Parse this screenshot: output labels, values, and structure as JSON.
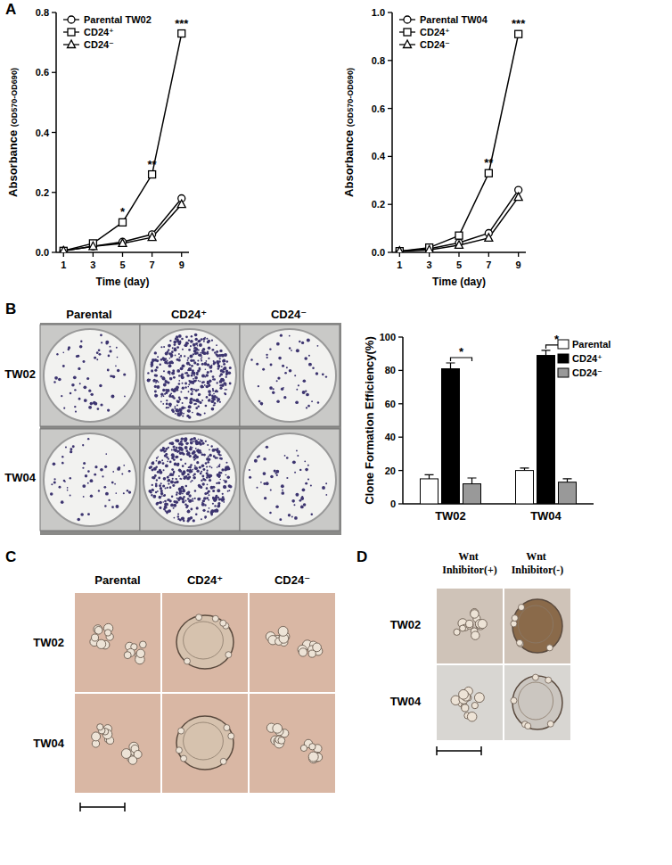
{
  "figure": {
    "panels": [
      "A",
      "B",
      "C",
      "D"
    ],
    "colony_columns": [
      "Parental",
      "CD24⁺",
      "CD24⁻"
    ],
    "colony_rows": [
      "TW02",
      "TW04"
    ],
    "sphere_columns": [
      "Parental",
      "CD24⁺",
      "CD24⁻"
    ],
    "sphere_rows": [
      "TW02",
      "TW04"
    ],
    "wnt_columns": [
      "Wnt Inhibitor(+)",
      "Wnt Inhibitor(-)"
    ],
    "wnt_rows": [
      "TW02",
      "TW04"
    ]
  },
  "chart_data": [
    {
      "type": "line",
      "x_label": "Time (day)",
      "y_label": "Absorbance (OD570-OD690)",
      "x": [
        1,
        3,
        5,
        7,
        9
      ],
      "xlim": [
        0.5,
        9.5
      ],
      "xticks": [
        1,
        3,
        5,
        7,
        9
      ],
      "ylim": [
        0,
        0.8
      ],
      "yticks": [
        {
          "value": 0,
          "label": "0.0"
        },
        0.2,
        0.4,
        0.6,
        0.8
      ],
      "legend": "upper left",
      "series": [
        {
          "name": "Parental TW02",
          "color": "#000000",
          "marker": "circle",
          "values": [
            0.005,
            0.02,
            0.035,
            0.06,
            0.18
          ]
        },
        {
          "name": "CD24⁺",
          "color": "#000000",
          "marker": "square",
          "values": [
            0.005,
            0.03,
            0.1,
            0.26,
            0.73
          ]
        },
        {
          "name": "CD24⁻",
          "color": "#000000",
          "marker": "triangle",
          "values": [
            0.005,
            0.02,
            0.03,
            0.05,
            0.16
          ]
        }
      ],
      "annotations": [
        {
          "x": 5,
          "text": "*"
        },
        {
          "x": 7,
          "text": "**"
        },
        {
          "x": 9,
          "text": "***"
        }
      ]
    },
    {
      "type": "line",
      "x_label": "Time (day)",
      "y_label": "Absorbance (OD570-OD690)",
      "x": [
        1,
        3,
        5,
        7,
        9
      ],
      "xlim": [
        0.5,
        9.5
      ],
      "xticks": [
        1,
        3,
        5,
        7,
        9
      ],
      "ylim": [
        0,
        1.0
      ],
      "yticks": [
        {
          "value": 0,
          "label": "0.0"
        },
        0.2,
        0.4,
        0.6,
        0.8,
        {
          "value": 1.0,
          "label": "1.0"
        }
      ],
      "legend": "upper left",
      "series": [
        {
          "name": "Parental TW04",
          "color": "#000000",
          "marker": "circle",
          "values": [
            0.005,
            0.015,
            0.04,
            0.08,
            0.26
          ]
        },
        {
          "name": "CD24⁺",
          "color": "#000000",
          "marker": "square",
          "values": [
            0.005,
            0.02,
            0.07,
            0.33,
            0.91
          ]
        },
        {
          "name": "CD24⁻",
          "color": "#000000",
          "marker": "triangle",
          "values": [
            0.005,
            0.01,
            0.03,
            0.06,
            0.23
          ]
        }
      ],
      "annotations": [
        {
          "x": 7,
          "text": "**"
        },
        {
          "x": 9,
          "text": "***"
        }
      ]
    },
    {
      "type": "bar",
      "y_label": "Clone Formation Efficiency(%)",
      "categories": [
        "TW02",
        "TW04"
      ],
      "ylim": [
        0,
        100
      ],
      "yticks": [
        0,
        20,
        40,
        60,
        80,
        100
      ],
      "legend": "upper right",
      "series": [
        {
          "name": "Parental",
          "color": "#ffffff",
          "values": [
            15,
            20
          ],
          "errors": [
            2.5,
            1.5
          ]
        },
        {
          "name": "CD24⁺",
          "color": "#000000",
          "values": [
            81,
            89
          ],
          "errors": [
            3.5,
            3
          ]
        },
        {
          "name": "CD24⁻",
          "color": "#999999",
          "values": [
            12,
            13
          ],
          "errors": [
            3.5,
            2
          ]
        }
      ],
      "annotations": [
        {
          "category": 0,
          "text": "*"
        },
        {
          "category": 1,
          "text": "*"
        }
      ]
    }
  ]
}
